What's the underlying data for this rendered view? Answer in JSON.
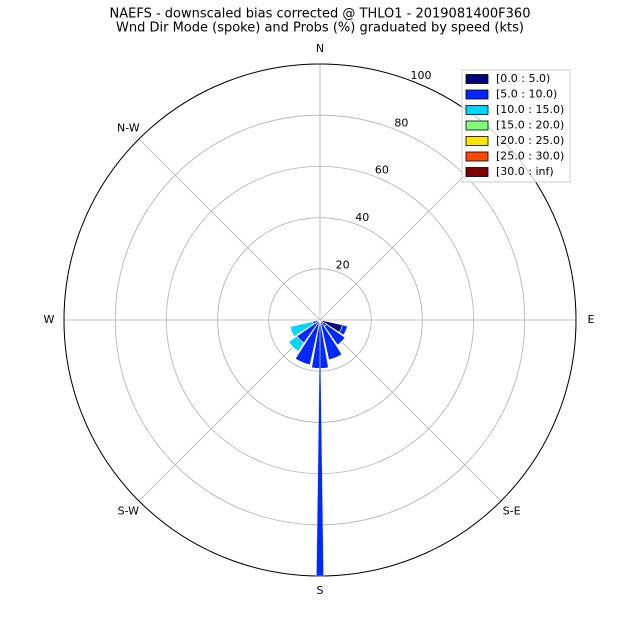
{
  "chart_data": {
    "type": "windrose",
    "title": "NAEFS - downscaled bias corrected @ THLO1 - 2019081400F360",
    "subtitle": "Wnd Dir Mode (spoke) and Probs (%) graduated by speed (kts)",
    "direction_labels": [
      "N",
      null,
      "E",
      "S-E",
      "S",
      "S-W",
      "W",
      "N-W"
    ],
    "x": [
      0,
      22.5,
      45,
      67.5,
      90,
      112.5,
      135,
      157.5,
      180,
      202.5,
      225,
      247.5,
      270,
      292.5,
      315,
      337.5
    ],
    "series": [
      {
        "name": "[0.0 : 5.0)",
        "color": "#00007f",
        "values": [
          0,
          0,
          0,
          0,
          0,
          9,
          3,
          1,
          0,
          0,
          0,
          0,
          0,
          0,
          0,
          0
        ]
      },
      {
        "name": "[5.0 : 10.0)",
        "color": "#0028ff",
        "values": [
          0,
          0,
          0,
          0,
          0,
          2,
          9,
          15,
          19,
          18,
          11,
          3,
          0,
          0,
          0,
          0
        ]
      },
      {
        "name": "[10.0 : 15.0)",
        "color": "#00d4ff",
        "values": [
          0,
          0,
          0,
          0,
          0,
          0,
          0,
          0,
          0,
          0,
          4,
          9,
          0,
          0,
          0,
          0
        ]
      },
      {
        "name": "[15.0 : 20.0)",
        "color": "#7dff7a",
        "values": [
          0,
          0,
          0,
          0,
          0,
          0,
          0,
          0,
          0,
          0,
          0,
          0,
          0,
          0,
          0,
          0
        ]
      },
      {
        "name": "[20.0 : 25.0)",
        "color": "#ffe500",
        "values": [
          0,
          0,
          0,
          0,
          0,
          0,
          0,
          0,
          0,
          0,
          0,
          0,
          0,
          0,
          0,
          0
        ]
      },
      {
        "name": "[25.0 : 30.0)",
        "color": "#ff4a00",
        "values": [
          0,
          0,
          0,
          0,
          0,
          0,
          0,
          0,
          0,
          0,
          0,
          0,
          0,
          0,
          0,
          0
        ]
      },
      {
        "name": "[30.0 : inf)",
        "color": "#7f0000",
        "values": [
          0,
          0,
          0,
          0,
          0,
          0,
          0,
          0,
          0,
          0,
          0,
          0,
          0,
          0,
          0,
          0
        ]
      }
    ],
    "mode_spoke": {
      "direction": 180,
      "value": 100,
      "color": "#0028ff"
    },
    "ylim": [
      0,
      100
    ],
    "yticks": [
      20,
      40,
      60,
      80,
      100
    ],
    "grid": true,
    "legend": "upper right"
  }
}
